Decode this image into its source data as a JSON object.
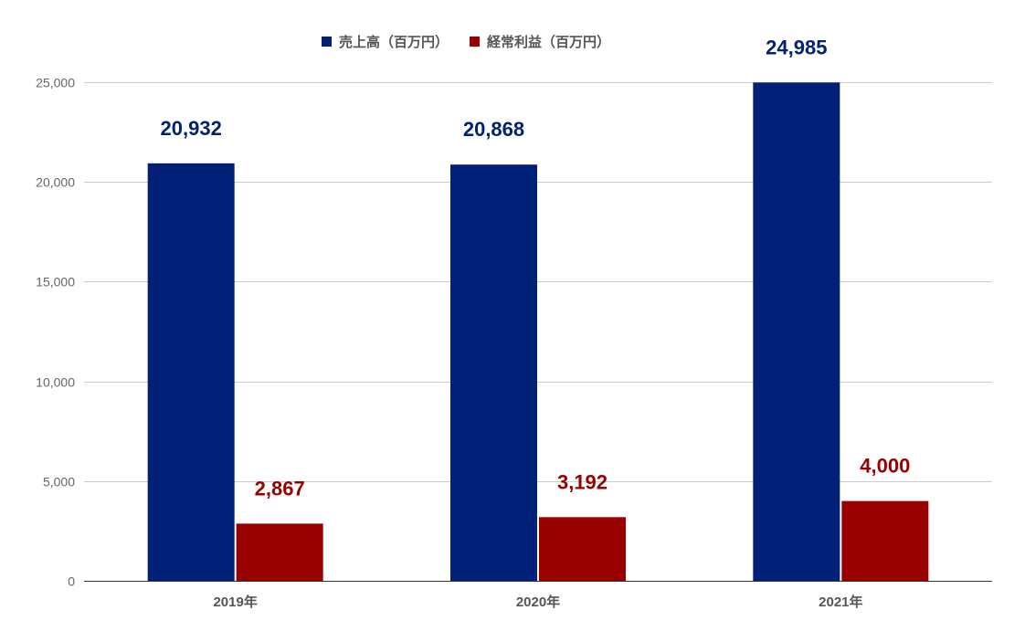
{
  "chart_data": {
    "type": "bar",
    "title": "",
    "xlabel": "",
    "ylabel": "",
    "categories": [
      "2019年",
      "2020年",
      "2021年"
    ],
    "series": [
      {
        "name": "売上高（百万円）",
        "values": [
          20932,
          20868,
          24985
        ],
        "labels": [
          "20,932",
          "20,868",
          "24,985"
        ],
        "color": "#002177"
      },
      {
        "name": "経常利益（百万円）",
        "values": [
          2867,
          3192,
          4000
        ],
        "labels": [
          "2,867",
          "3,192",
          "4,000"
        ],
        "color": "#990000"
      }
    ],
    "ylim": [
      0,
      25000
    ],
    "yticks": [
      0,
      5000,
      10000,
      15000,
      20000,
      25000
    ],
    "ytick_labels": [
      "0",
      "5,000",
      "10,000",
      "15,000",
      "20,000",
      "25,000"
    ],
    "grid": true,
    "legend_position": "top-center"
  }
}
